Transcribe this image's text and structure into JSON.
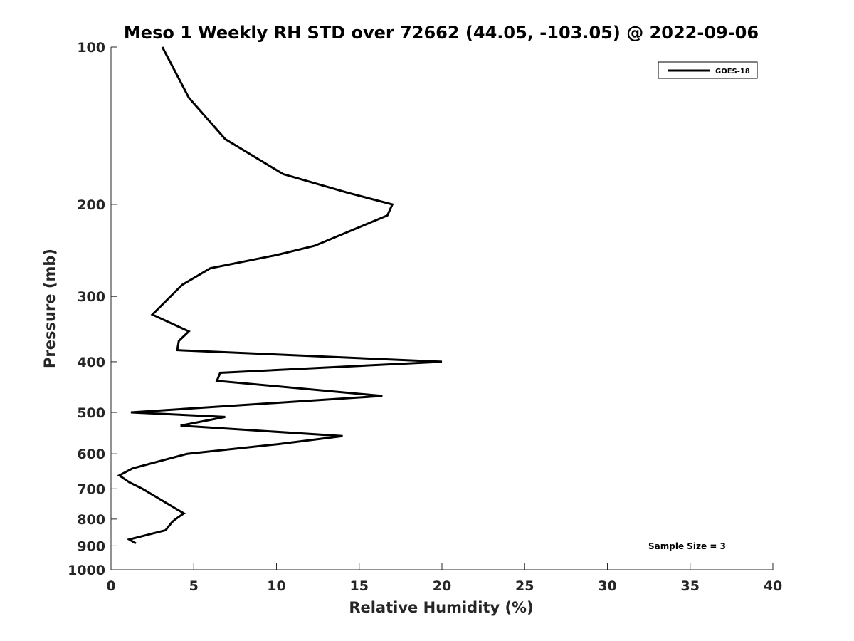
{
  "chart_data": {
    "type": "line",
    "title": "Meso 1 Weekly RH STD over 72662 (44.05, -103.05) @ 2022-09-06",
    "xlabel": "Relative Humidity (%)",
    "ylabel": "Pressure (mb)",
    "xlim": [
      0,
      40
    ],
    "ylim": [
      100,
      1000
    ],
    "yscale": "log",
    "y_reversed": true,
    "x_ticks": [
      0,
      5,
      10,
      15,
      20,
      25,
      30,
      35,
      40
    ],
    "y_ticks": [
      100,
      200,
      300,
      400,
      500,
      600,
      700,
      800,
      900,
      1000
    ],
    "grid": false,
    "legend_position": "top-right",
    "series": [
      {
        "name": "GOES-18",
        "color": "#000000",
        "x": [
          3.1,
          4.7,
          6.9,
          10.4,
          14.3,
          17.0,
          16.7,
          12.3,
          10.0,
          6.0,
          4.3,
          2.5,
          4.7,
          4.1,
          4.0,
          20.0,
          6.6,
          6.4,
          16.4,
          1.2,
          6.9,
          4.2,
          14.0,
          10.1,
          4.6,
          2.5,
          1.3,
          0.5,
          1.1,
          1.9,
          4.4,
          3.9,
          3.7,
          3.3,
          1.1,
          1.5
        ],
        "y": [
          100,
          125,
          150,
          175,
          190,
          200,
          210,
          240,
          250,
          265,
          285,
          325,
          350,
          365,
          380,
          400,
          420,
          435,
          465,
          500,
          510,
          530,
          555,
          575,
          600,
          625,
          640,
          660,
          680,
          700,
          780,
          800,
          810,
          840,
          875,
          890
        ]
      }
    ],
    "annotations": [
      {
        "text": "Sample Size = 3"
      }
    ]
  }
}
